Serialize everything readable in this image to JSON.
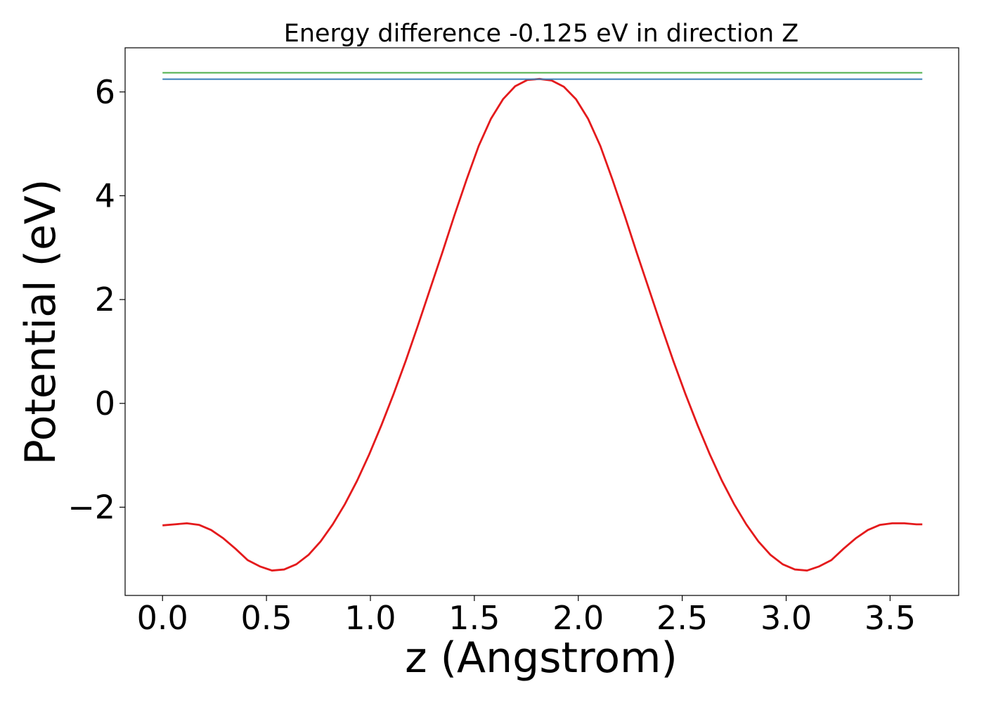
{
  "chart_data": {
    "type": "line",
    "title": "Energy difference -0.125 eV in direction Z",
    "xlabel": "z (Angstrom)",
    "ylabel": "Potential (eV)",
    "xlim": [
      -0.18,
      3.83
    ],
    "ylim": [
      -3.7,
      6.85
    ],
    "x_ticks": [
      0.0,
      0.5,
      1.0,
      1.5,
      2.0,
      2.5,
      3.0,
      3.5
    ],
    "x_tick_labels": [
      "0.0",
      "0.5",
      "1.0",
      "1.5",
      "2.0",
      "2.5",
      "3.0",
      "3.5"
    ],
    "y_ticks": [
      -2,
      0,
      2,
      4,
      6
    ],
    "y_tick_labels": [
      "−2",
      "0",
      "2",
      "4",
      "6"
    ],
    "grid": false,
    "series": [
      {
        "color": "#e41a1c",
        "x": [
          0.0,
          0.0585,
          0.117,
          0.1755,
          0.234,
          0.2925,
          0.351,
          0.4095,
          0.468,
          0.5265,
          0.585,
          0.6435,
          0.702,
          0.7605,
          0.819,
          0.8775,
          0.936,
          0.9945,
          1.053,
          1.1115,
          1.17,
          1.2285,
          1.287,
          1.3455,
          1.404,
          1.4625,
          1.521,
          1.5795,
          1.638,
          1.6965,
          1.755,
          1.8135,
          1.872,
          1.9305,
          1.989,
          2.0475,
          2.106,
          2.1645,
          2.223,
          2.2815,
          2.34,
          2.3985,
          2.457,
          2.5155,
          2.574,
          2.6325,
          2.691,
          2.7495,
          2.808,
          2.8665,
          2.925,
          2.9835,
          3.042,
          3.1005,
          3.159,
          3.2175,
          3.276,
          3.3345,
          3.393,
          3.4515,
          3.51,
          3.5685,
          3.627,
          3.655
        ],
        "y": [
          -2.35,
          -2.33,
          -2.31,
          -2.34,
          -2.44,
          -2.6,
          -2.8,
          -3.02,
          -3.14,
          -3.22,
          -3.2,
          -3.1,
          -2.92,
          -2.66,
          -2.33,
          -1.94,
          -1.49,
          -0.98,
          -0.42,
          0.18,
          0.82,
          1.5,
          2.2,
          2.9,
          3.62,
          4.31,
          4.96,
          5.48,
          5.86,
          6.11,
          6.23,
          6.25,
          6.22,
          6.1,
          5.86,
          5.48,
          4.96,
          4.31,
          3.62,
          2.9,
          2.2,
          1.5,
          0.82,
          0.18,
          -0.42,
          -0.98,
          -1.49,
          -1.94,
          -2.33,
          -2.66,
          -2.92,
          -3.1,
          -3.2,
          -3.22,
          -3.14,
          -3.02,
          -2.8,
          -2.6,
          -2.44,
          -2.34,
          -2.31,
          -2.31,
          -2.33,
          -2.33
        ]
      },
      {
        "color": "#4daf4a",
        "x": [
          0.0,
          3.655
        ],
        "y": [
          6.37,
          6.37
        ]
      },
      {
        "color": "#377eb8",
        "x": [
          0.0,
          3.655
        ],
        "y": [
          6.245,
          6.245
        ]
      }
    ]
  }
}
